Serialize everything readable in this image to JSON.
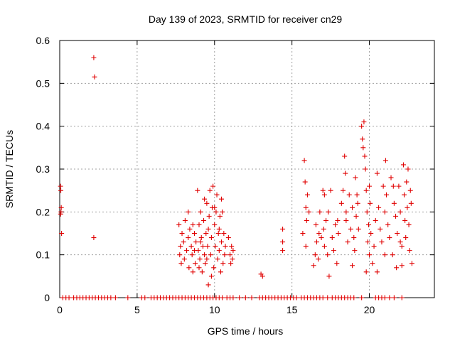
{
  "chart_data": {
    "type": "scatter",
    "title": "Day 139 of 2023, SRMTID for receiver cn29",
    "xlabel": "GPS time / hours",
    "ylabel": "SRMTID / TECUs",
    "xlim": [
      0,
      24.2
    ],
    "ylim": [
      0,
      0.6
    ],
    "xticks": [
      0,
      5,
      10,
      15,
      20
    ],
    "yticks": [
      0,
      0.1,
      0.2,
      0.3,
      0.4,
      0.5,
      0.6
    ],
    "xtick_labels": [
      "0",
      "5",
      "10",
      "15",
      "20"
    ],
    "ytick_labels": [
      "0",
      "0.1",
      "0.2",
      "0.3",
      "0.4",
      "0.5",
      "0.6"
    ],
    "grid": true,
    "marker": "+",
    "color": "#e00000",
    "series": [
      {
        "name": "SRMTID",
        "points": [
          [
            0.05,
            0.26
          ],
          [
            0.07,
            0.25
          ],
          [
            0.08,
            0.2
          ],
          [
            0.1,
            0.21
          ],
          [
            0.12,
            0.15
          ],
          [
            0.06,
            0.195
          ],
          [
            2.2,
            0.56
          ],
          [
            2.25,
            0.515
          ],
          [
            2.2,
            0.14
          ],
          [
            7.7,
            0.17
          ],
          [
            7.8,
            0.12
          ],
          [
            7.75,
            0.1
          ],
          [
            7.85,
            0.08
          ],
          [
            7.9,
            0.15
          ],
          [
            8.0,
            0.13
          ],
          [
            8.05,
            0.09
          ],
          [
            8.1,
            0.18
          ],
          [
            8.2,
            0.11
          ],
          [
            8.3,
            0.14
          ],
          [
            8.35,
            0.07
          ],
          [
            8.4,
            0.16
          ],
          [
            8.5,
            0.12
          ],
          [
            8.55,
            0.1
          ],
          [
            8.6,
            0.06
          ],
          [
            8.7,
            0.15
          ],
          [
            8.75,
            0.08
          ],
          [
            8.8,
            0.13
          ],
          [
            8.9,
            0.25
          ],
          [
            8.95,
            0.11
          ],
          [
            9.0,
            0.17
          ],
          [
            9.05,
            0.09
          ],
          [
            9.1,
            0.2
          ],
          [
            9.15,
            0.14
          ],
          [
            9.2,
            0.06
          ],
          [
            9.25,
            0.12
          ],
          [
            9.3,
            0.18
          ],
          [
            9.35,
            0.1
          ],
          [
            9.4,
            0.08
          ],
          [
            9.45,
            0.15
          ],
          [
            9.5,
            0.22
          ],
          [
            9.55,
            0.12
          ],
          [
            9.6,
            0.03
          ],
          [
            9.65,
            0.19
          ],
          [
            9.7,
            0.25
          ],
          [
            9.75,
            0.1
          ],
          [
            9.8,
            0.14
          ],
          [
            9.85,
            0.21
          ],
          [
            9.9,
            0.26
          ],
          [
            9.95,
            0.07
          ],
          [
            10.0,
            0.17
          ],
          [
            10.05,
            0.12
          ],
          [
            10.1,
            0.2
          ],
          [
            10.15,
            0.24
          ],
          [
            10.2,
            0.09
          ],
          [
            10.25,
            0.15
          ],
          [
            10.3,
            0.11
          ],
          [
            10.35,
            0.19
          ],
          [
            10.4,
            0.06
          ],
          [
            10.45,
            0.13
          ],
          [
            10.5,
            0.2
          ],
          [
            10.55,
            0.08
          ],
          [
            10.6,
            0.15
          ],
          [
            10.65,
            0.1
          ],
          [
            10.7,
            0.12
          ],
          [
            10.9,
            0.14
          ],
          [
            11.0,
            0.1
          ],
          [
            11.05,
            0.08
          ],
          [
            11.1,
            0.12
          ],
          [
            11.15,
            0.09
          ],
          [
            11.2,
            0.11
          ],
          [
            8.3,
            0.2
          ],
          [
            8.6,
            0.17
          ],
          [
            9.0,
            0.07
          ],
          [
            9.35,
            0.23
          ],
          [
            9.6,
            0.16
          ],
          [
            9.8,
            0.05
          ],
          [
            10.0,
            0.21
          ],
          [
            10.3,
            0.16
          ],
          [
            10.45,
            0.23
          ],
          [
            9.1,
            0.13
          ],
          [
            8.7,
            0.11
          ],
          [
            9.5,
            0.09
          ],
          [
            13.0,
            0.055
          ],
          [
            13.1,
            0.05
          ],
          [
            14.4,
            0.16
          ],
          [
            14.4,
            0.13
          ],
          [
            14.4,
            0.11
          ],
          [
            15.7,
            0.15
          ],
          [
            15.8,
            0.32
          ],
          [
            15.85,
            0.27
          ],
          [
            15.9,
            0.21
          ],
          [
            15.95,
            0.18
          ],
          [
            16.0,
            0.24
          ],
          [
            16.1,
            0.2
          ],
          [
            16.5,
            0.1
          ],
          [
            16.55,
            0.17
          ],
          [
            16.6,
            0.13
          ],
          [
            16.7,
            0.09
          ],
          [
            16.75,
            0.15
          ],
          [
            16.8,
            0.2
          ],
          [
            17.0,
            0.25
          ],
          [
            17.05,
            0.16
          ],
          [
            17.1,
            0.12
          ],
          [
            17.2,
            0.18
          ],
          [
            17.3,
            0.1
          ],
          [
            17.35,
            0.2
          ],
          [
            17.4,
            0.05
          ],
          [
            17.5,
            0.25
          ],
          [
            17.6,
            0.14
          ],
          [
            17.7,
            0.11
          ],
          [
            17.8,
            0.17
          ],
          [
            17.9,
            0.08
          ],
          [
            18.0,
            0.15
          ],
          [
            18.2,
            0.22
          ],
          [
            18.3,
            0.25
          ],
          [
            18.4,
            0.33
          ],
          [
            18.45,
            0.29
          ],
          [
            18.5,
            0.18
          ],
          [
            18.6,
            0.13
          ],
          [
            18.7,
            0.24
          ],
          [
            18.8,
            0.16
          ],
          [
            18.9,
            0.21
          ],
          [
            19.0,
            0.14
          ],
          [
            19.05,
            0.11
          ],
          [
            19.1,
            0.28
          ],
          [
            19.15,
            0.19
          ],
          [
            19.2,
            0.24
          ],
          [
            19.3,
            0.16
          ],
          [
            19.5,
            0.4
          ],
          [
            19.55,
            0.37
          ],
          [
            19.6,
            0.35
          ],
          [
            19.65,
            0.41
          ],
          [
            19.7,
            0.33
          ],
          [
            19.75,
            0.3
          ],
          [
            19.8,
            0.25
          ],
          [
            19.85,
            0.2
          ],
          [
            19.9,
            0.13
          ],
          [
            19.95,
            0.17
          ],
          [
            20.0,
            0.1
          ],
          [
            20.05,
            0.22
          ],
          [
            20.1,
            0.15
          ],
          [
            20.2,
            0.08
          ],
          [
            20.3,
            0.12
          ],
          [
            20.4,
            0.18
          ],
          [
            20.5,
            0.29
          ],
          [
            20.6,
            0.21
          ],
          [
            20.7,
            0.16
          ],
          [
            20.8,
            0.13
          ],
          [
            20.9,
            0.26
          ],
          [
            21.0,
            0.2
          ],
          [
            21.05,
            0.32
          ],
          [
            21.1,
            0.24
          ],
          [
            21.2,
            0.17
          ],
          [
            21.3,
            0.14
          ],
          [
            21.4,
            0.28
          ],
          [
            21.5,
            0.1
          ],
          [
            21.6,
            0.22
          ],
          [
            21.7,
            0.19
          ],
          [
            21.8,
            0.15
          ],
          [
            21.9,
            0.26
          ],
          [
            22.0,
            0.2
          ],
          [
            22.1,
            0.12
          ],
          [
            22.2,
            0.31
          ],
          [
            22.25,
            0.24
          ],
          [
            22.3,
            0.18
          ],
          [
            22.35,
            0.14
          ],
          [
            22.4,
            0.27
          ],
          [
            22.45,
            0.21
          ],
          [
            22.5,
            0.3
          ],
          [
            22.55,
            0.17
          ],
          [
            22.6,
            0.11
          ],
          [
            22.65,
            0.25
          ],
          [
            22.7,
            0.22
          ],
          [
            22.75,
            0.08
          ],
          [
            21.75,
            0.07
          ],
          [
            22.1,
            0.075
          ],
          [
            19.8,
            0.06
          ],
          [
            20.5,
            0.06
          ],
          [
            18.9,
            0.075
          ],
          [
            16.4,
            0.075
          ],
          [
            15.9,
            0.12
          ],
          [
            17.1,
            0.24
          ],
          [
            18.5,
            0.2
          ],
          [
            21.0,
            0.1
          ],
          [
            20.0,
            0.26
          ],
          [
            21.55,
            0.26
          ],
          [
            22.0,
            0.13
          ],
          [
            19.25,
            0.22
          ],
          [
            16.9,
            0.14
          ],
          [
            17.95,
            0.18
          ],
          [
            0.2,
            0
          ],
          [
            0.4,
            0
          ],
          [
            0.6,
            0
          ],
          [
            0.9,
            0
          ],
          [
            1.1,
            0
          ],
          [
            1.3,
            0
          ],
          [
            1.5,
            0
          ],
          [
            1.7,
            0
          ],
          [
            1.9,
            0
          ],
          [
            2.1,
            0
          ],
          [
            2.3,
            0
          ],
          [
            2.5,
            0
          ],
          [
            2.7,
            0
          ],
          [
            2.9,
            0
          ],
          [
            3.1,
            0
          ],
          [
            3.3,
            0
          ],
          [
            3.6,
            0
          ],
          [
            4.4,
            0
          ],
          [
            5.3,
            0
          ],
          [
            5.5,
            0
          ],
          [
            5.9,
            0
          ],
          [
            6.1,
            0
          ],
          [
            6.3,
            0
          ],
          [
            6.5,
            0
          ],
          [
            6.7,
            0
          ],
          [
            6.9,
            0
          ],
          [
            7.1,
            0
          ],
          [
            7.3,
            0
          ],
          [
            7.5,
            0
          ],
          [
            7.7,
            0
          ],
          [
            7.9,
            0
          ],
          [
            8.1,
            0
          ],
          [
            8.3,
            0
          ],
          [
            8.5,
            0
          ],
          [
            8.7,
            0
          ],
          [
            8.9,
            0
          ],
          [
            9.1,
            0
          ],
          [
            9.3,
            0
          ],
          [
            9.5,
            0
          ],
          [
            9.7,
            0
          ],
          [
            9.9,
            0
          ],
          [
            10.1,
            0
          ],
          [
            10.3,
            0
          ],
          [
            10.5,
            0
          ],
          [
            10.8,
            0
          ],
          [
            11.0,
            0
          ],
          [
            11.2,
            0
          ],
          [
            11.6,
            0
          ],
          [
            12.0,
            0
          ],
          [
            12.4,
            0
          ],
          [
            12.9,
            0
          ],
          [
            13.1,
            0
          ],
          [
            13.3,
            0
          ],
          [
            13.5,
            0
          ],
          [
            13.7,
            0
          ],
          [
            13.9,
            0
          ],
          [
            14.1,
            0
          ],
          [
            14.3,
            0
          ],
          [
            14.5,
            0
          ],
          [
            14.7,
            0
          ],
          [
            14.9,
            0
          ],
          [
            15.1,
            0
          ],
          [
            15.3,
            0
          ],
          [
            15.6,
            0
          ],
          [
            15.8,
            0
          ],
          [
            16.0,
            0
          ],
          [
            16.2,
            0
          ],
          [
            16.4,
            0
          ],
          [
            16.6,
            0
          ],
          [
            16.8,
            0
          ],
          [
            17.0,
            0
          ],
          [
            17.3,
            0
          ],
          [
            17.6,
            0
          ],
          [
            17.8,
            0
          ],
          [
            18.0,
            0
          ],
          [
            18.2,
            0
          ],
          [
            18.4,
            0
          ],
          [
            18.6,
            0
          ],
          [
            18.8,
            0
          ],
          [
            19.0,
            0
          ],
          [
            19.5,
            0
          ],
          [
            20.4,
            0
          ],
          [
            20.6,
            0
          ],
          [
            20.8,
            0
          ],
          [
            21.0,
            0
          ],
          [
            21.3,
            0
          ],
          [
            21.6,
            0
          ],
          [
            22.1,
            0
          ]
        ]
      }
    ]
  }
}
